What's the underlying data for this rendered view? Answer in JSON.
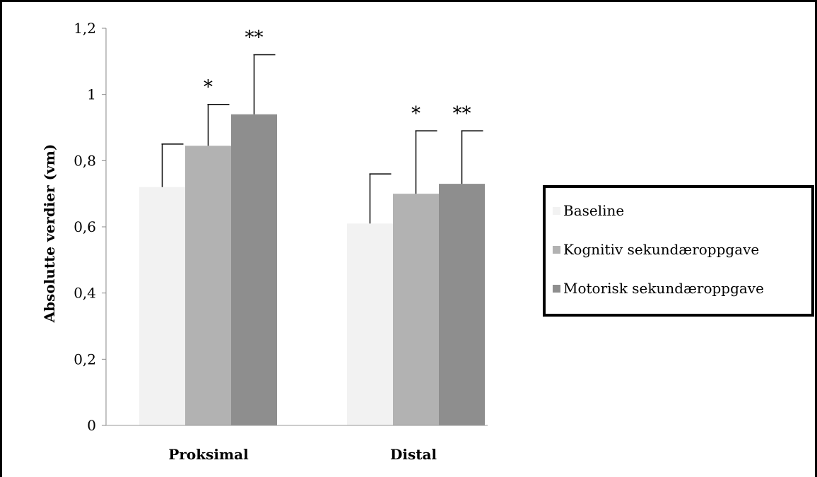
{
  "chart_data": {
    "type": "bar",
    "categories": [
      "Proksimal",
      "Distal"
    ],
    "series": [
      {
        "name": "Baseline",
        "values": [
          0.72,
          0.61
        ],
        "errors": [
          0.13,
          0.15
        ],
        "color": "#f2f2f2",
        "significance": [
          "",
          ""
        ]
      },
      {
        "name": "Kognitiv sekundæroppgave",
        "values": [
          0.845,
          0.7
        ],
        "errors": [
          0.125,
          0.19
        ],
        "color": "#b2b2b2",
        "significance": [
          "*",
          "*"
        ]
      },
      {
        "name": "Motorisk sekundæroppgave",
        "values": [
          0.94,
          0.73
        ],
        "errors": [
          0.18,
          0.16
        ],
        "color": "#8e8e8e",
        "significance": [
          "**",
          "**"
        ]
      }
    ],
    "ylabel": "Absolutte verdier (vm)",
    "xlabel": "",
    "ylim": [
      0,
      1.2
    ],
    "yticks": [
      "0",
      "0,2",
      "0,4",
      "0,6",
      "0,8",
      "1",
      "1,2"
    ],
    "grid": false,
    "legend_position": "right"
  }
}
